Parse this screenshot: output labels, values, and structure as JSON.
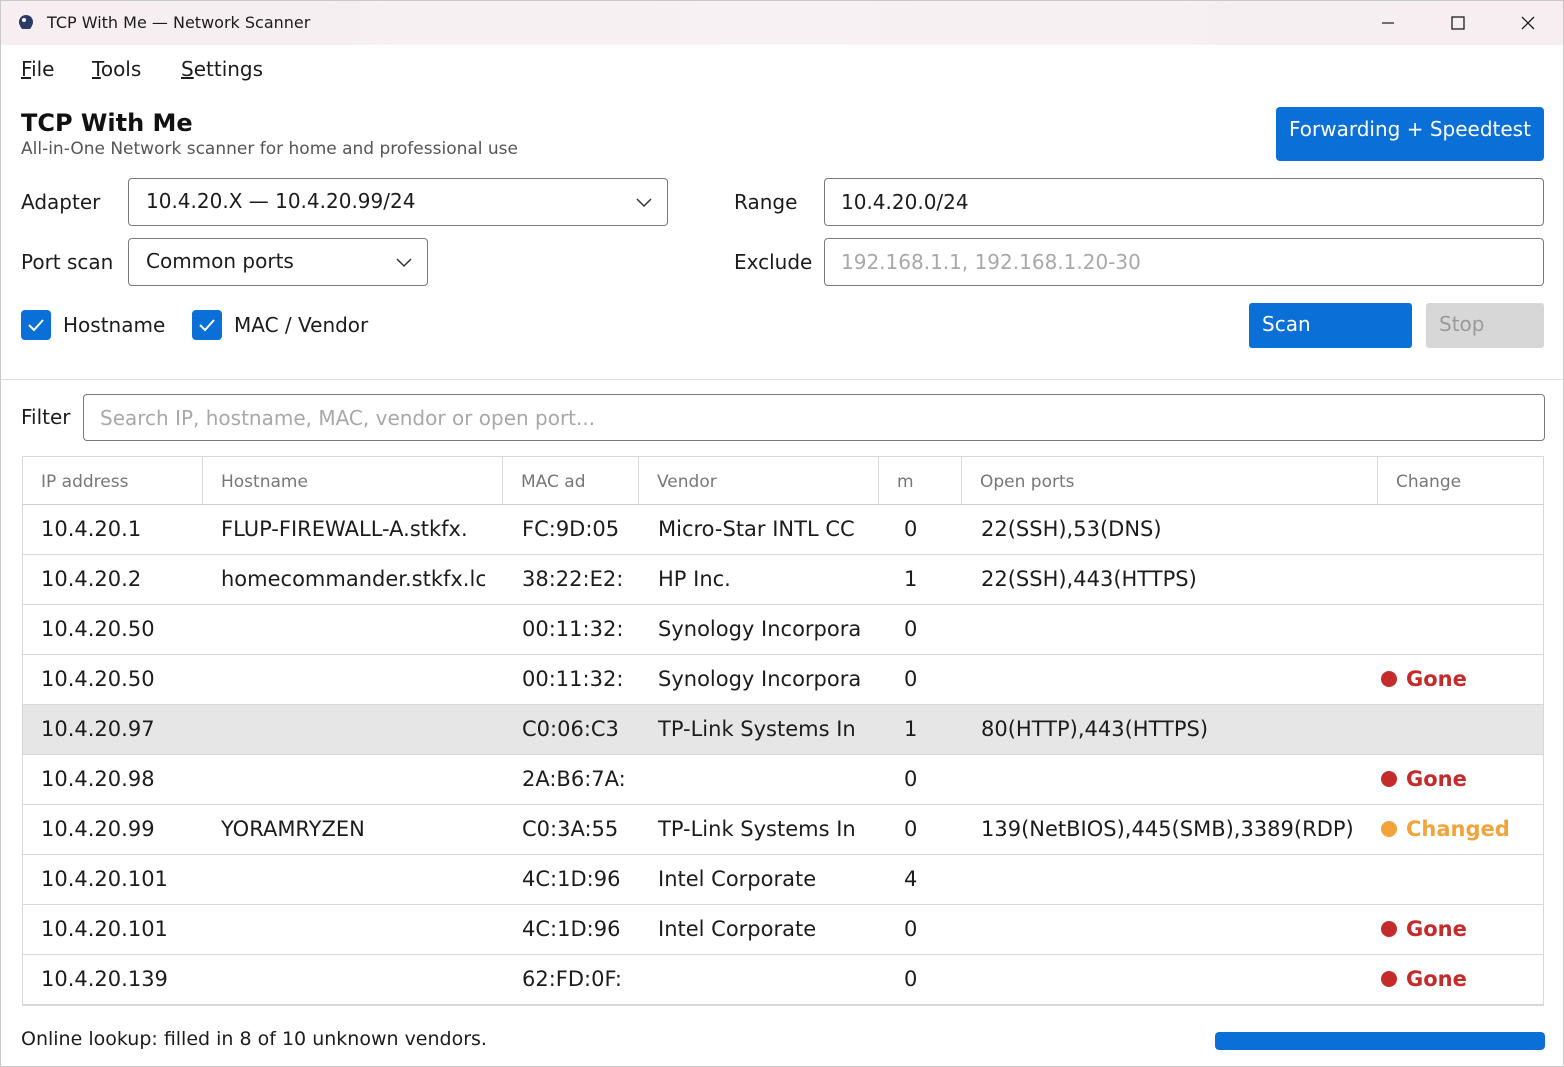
{
  "window": {
    "title": "TCP With Me — Network Scanner",
    "icon": "app-logo-icon"
  },
  "menu": [
    {
      "accel": "F",
      "rest": "ile"
    },
    {
      "accel": "T",
      "rest": "ools"
    },
    {
      "accel": "S",
      "rest": "ettings"
    }
  ],
  "header": {
    "title": "TCP With Me",
    "subtitle": "All-in-One Network scanner for home and professional use",
    "forwarding_button": "Forwarding + Speedtest"
  },
  "form": {
    "adapter_label": "Adapter",
    "adapter_value": "10.4.20.X — 10.4.20.99/24",
    "range_label": "Range",
    "range_value": "10.4.20.0/24",
    "portscan_label": "Port scan",
    "portscan_value": "Common ports",
    "exclude_label": "Exclude",
    "exclude_placeholder": "192.168.1.1, 192.168.1.20-30",
    "hostname_label": "Hostname",
    "hostname_checked": true,
    "mac_label": "MAC / Vendor",
    "mac_checked": true,
    "scan_button": "Scan",
    "stop_button": "Stop"
  },
  "filter": {
    "label": "Filter",
    "placeholder": "Search IP, hostname, MAC, vendor or open port..."
  },
  "table": {
    "columns": [
      "IP address",
      "Hostname",
      "MAC ad",
      "Vendor",
      "m",
      "Open ports",
      "Change"
    ],
    "rows": [
      {
        "ip": "10.4.20.1",
        "hostname": "FLUP-FIREWALL-A.stkfx.",
        "mac": "FC:9D:05",
        "vendor": "Micro-Star INTL CC",
        "m": "0",
        "ports": "22(SSH),53(DNS)",
        "change": "",
        "selected": false
      },
      {
        "ip": "10.4.20.2",
        "hostname": "homecommander.stkfx.lc",
        "mac": "38:22:E2:",
        "vendor": "HP Inc.",
        "m": "1",
        "ports": "22(SSH),443(HTTPS)",
        "change": "",
        "selected": false
      },
      {
        "ip": "10.4.20.50",
        "hostname": "",
        "mac": "00:11:32:",
        "vendor": "Synology Incorpora",
        "m": "0",
        "ports": "",
        "change": "",
        "selected": false
      },
      {
        "ip": "10.4.20.50",
        "hostname": "",
        "mac": "00:11:32:",
        "vendor": "Synology Incorpora",
        "m": "0",
        "ports": "",
        "change": "Gone",
        "selected": false
      },
      {
        "ip": "10.4.20.97",
        "hostname": "",
        "mac": "C0:06:C3",
        "vendor": "TP-Link Systems In",
        "m": "1",
        "ports": "80(HTTP),443(HTTPS)",
        "change": "",
        "selected": true
      },
      {
        "ip": "10.4.20.98",
        "hostname": "",
        "mac": "2A:B6:7A:",
        "vendor": "",
        "m": "0",
        "ports": "",
        "change": "Gone",
        "selected": false
      },
      {
        "ip": "10.4.20.99",
        "hostname": "YORAMRYZEN",
        "mac": "C0:3A:55",
        "vendor": "TP-Link Systems In",
        "m": "0",
        "ports": "139(NetBIOS),445(SMB),3389(RDP)",
        "change": "Changed",
        "selected": false
      },
      {
        "ip": "10.4.20.101",
        "hostname": "",
        "mac": "4C:1D:96",
        "vendor": "Intel Corporate",
        "m": "4",
        "ports": "",
        "change": "",
        "selected": false
      },
      {
        "ip": "10.4.20.101",
        "hostname": "",
        "mac": "4C:1D:96",
        "vendor": "Intel Corporate",
        "m": "0",
        "ports": "",
        "change": "Gone",
        "selected": false
      },
      {
        "ip": "10.4.20.139",
        "hostname": "",
        "mac": "62:FD:0F:",
        "vendor": "",
        "m": "0",
        "ports": "",
        "change": "Gone",
        "selected": false
      }
    ]
  },
  "change_colors": {
    "Gone": "#c42b2b",
    "Changed": "#f2a43a"
  },
  "status": {
    "text": "Online lookup: filled in 8 of 10 unknown vendors.",
    "progress_fraction": 1.0
  },
  "colors": {
    "accent": "#0a6fd6",
    "selected_row": "#e6e6e6"
  }
}
